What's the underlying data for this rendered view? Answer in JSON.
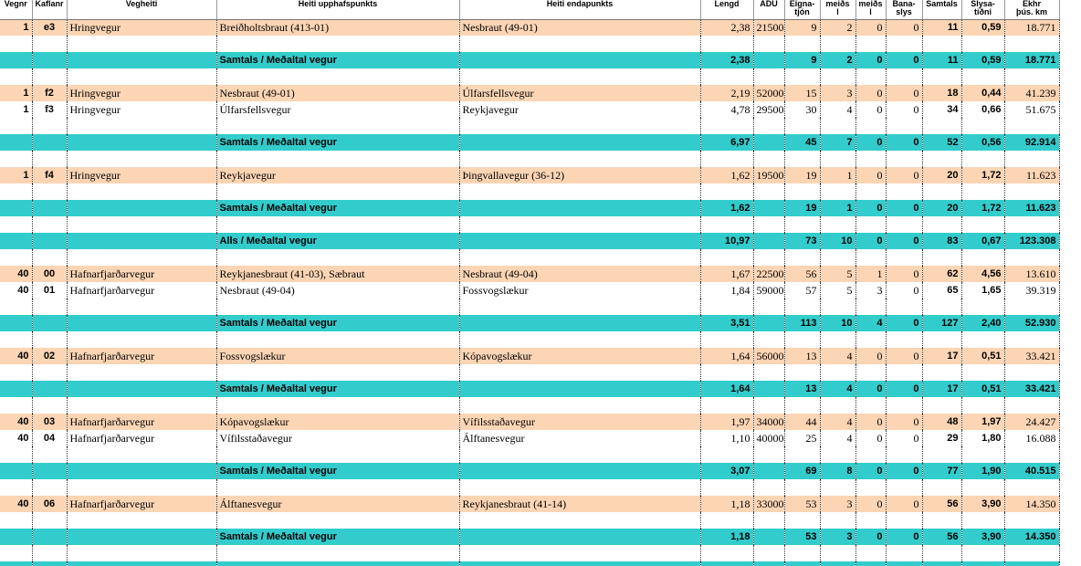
{
  "header": [
    "Vegnr",
    "Kaflanr",
    "Vegheiti",
    "Heiti upphafspunkts",
    "Heiti endapunkts",
    "Lengd",
    "ÁDU",
    "Eigna-\ntjón",
    "meiðs\nl",
    "meiðs\nl",
    "Bana-\nslys",
    "Samtals",
    "Slysa-\ntíðni",
    "Ekhr\nþús. km"
  ],
  "rows": [
    {
      "color": "#fcd5b4",
      "cells": [
        "1",
        "e3",
        "Hringvegur",
        "Breiðholtsbraut (413-01)",
        "Nesbraut (49-01)",
        "2,38",
        "21500",
        "9",
        "2",
        "0",
        "0",
        "11",
        "0,59",
        "18.771"
      ]
    },
    null,
    {
      "color": "#33cccc",
      "cells": [
        null,
        null,
        null,
        "Samtals / Meðaltal vegur",
        null,
        "2,38",
        null,
        "9",
        "2",
        "0",
        "0",
        "11",
        "0,59",
        "18.771"
      ]
    },
    null,
    {
      "color": "#fcd5b4",
      "cells": [
        "1",
        "f2",
        "Hringvegur",
        "Nesbraut (49-01)",
        "Úlfarsfellsvegur",
        "2,19",
        "52000",
        "15",
        "3",
        "0",
        "0",
        "18",
        "0,44",
        "41.239"
      ]
    },
    {
      "color": "#ffffff",
      "cells": [
        "1",
        "f3",
        "Hringvegur",
        "Úlfarsfellsvegur",
        "Reykjavegur",
        "4,78",
        "29500",
        "30",
        "4",
        "0",
        "0",
        "34",
        "0,66",
        "51.675"
      ]
    },
    null,
    {
      "color": "#33cccc",
      "cells": [
        null,
        null,
        null,
        "Samtals / Meðaltal vegur",
        null,
        "6,97",
        null,
        "45",
        "7",
        "0",
        "0",
        "52",
        "0,56",
        "92.914"
      ]
    },
    null,
    {
      "color": "#fcd5b4",
      "cells": [
        "1",
        "f4",
        "Hringvegur",
        "Reykjavegur",
        "Þingvallavegur (36-12)",
        "1,62",
        "19500",
        "19",
        "1",
        "0",
        "0",
        "20",
        "1,72",
        "11.623"
      ]
    },
    null,
    {
      "color": "#33cccc",
      "cells": [
        null,
        null,
        null,
        "Samtals / Meðaltal vegur",
        null,
        "1,62",
        null,
        "19",
        "1",
        "0",
        "0",
        "20",
        "1,72",
        "11.623"
      ]
    },
    null,
    {
      "color": "#33cccc",
      "cells": [
        null,
        null,
        null,
        "Alls / Meðaltal vegur",
        null,
        "10,97",
        null,
        "73",
        "10",
        "0",
        "0",
        "83",
        "0,67",
        "123.308"
      ]
    },
    null,
    {
      "color": "#fcd5b4",
      "cells": [
        "40",
        "00",
        "Hafnarfjarðarvegur",
        "Reykjanesbraut (41-03), Sæbraut",
        "Nesbraut (49-04)",
        "1,67",
        "22500",
        "56",
        "5",
        "1",
        "0",
        "62",
        "4,56",
        "13.610"
      ]
    },
    {
      "color": "#ffffff",
      "cells": [
        "40",
        "01",
        "Hafnarfjarðarvegur",
        "Nesbraut (49-04)",
        "Fossvogslækur",
        "1,84",
        "59000",
        "57",
        "5",
        "3",
        "0",
        "65",
        "1,65",
        "39.319"
      ]
    },
    null,
    {
      "color": "#33cccc",
      "cells": [
        null,
        null,
        null,
        "Samtals / Meðaltal vegur",
        null,
        "3,51",
        null,
        "113",
        "10",
        "4",
        "0",
        "127",
        "2,40",
        "52.930"
      ]
    },
    null,
    {
      "color": "#fcd5b4",
      "cells": [
        "40",
        "02",
        "Hafnarfjarðarvegur",
        "Fossvogslækur",
        "Kópavogslækur",
        "1,64",
        "56000",
        "13",
        "4",
        "0",
        "0",
        "17",
        "0,51",
        "33.421"
      ]
    },
    null,
    {
      "color": "#33cccc",
      "cells": [
        null,
        null,
        null,
        "Samtals / Meðaltal vegur",
        null,
        "1,64",
        null,
        "13",
        "4",
        "0",
        "0",
        "17",
        "0,51",
        "33.421"
      ]
    },
    null,
    {
      "color": "#fcd5b4",
      "cells": [
        "40",
        "03",
        "Hafnarfjarðarvegur",
        "Kópavogslækur",
        "Vífilsstaðavegur",
        "1,97",
        "34000",
        "44",
        "4",
        "0",
        "0",
        "48",
        "1,97",
        "24.427"
      ]
    },
    {
      "color": "#ffffff",
      "cells": [
        "40",
        "04",
        "Hafnarfjarðarvegur",
        "Vífilsstaðavegur",
        "Álftanesvegur",
        "1,10",
        "40000",
        "25",
        "4",
        "0",
        "0",
        "29",
        "1,80",
        "16.088"
      ]
    },
    null,
    {
      "color": "#33cccc",
      "cells": [
        null,
        null,
        null,
        "Samtals / Meðaltal vegur",
        null,
        "3,07",
        null,
        "69",
        "8",
        "0",
        "0",
        "77",
        "1,90",
        "40.515"
      ]
    },
    null,
    {
      "color": "#fcd5b4",
      "cells": [
        "40",
        "06",
        "Hafnarfjarðarvegur",
        "Álftanesvegur",
        "Reykjanesbraut (41-14)",
        "1,18",
        "33000",
        "53",
        "3",
        "0",
        "0",
        "56",
        "3,90",
        "14.350"
      ]
    },
    null,
    {
      "color": "#33cccc",
      "cells": [
        null,
        null,
        null,
        "Samtals / Meðaltal vegur",
        null,
        "1,18",
        null,
        "53",
        "3",
        "0",
        "0",
        "56",
        "3,90",
        "14.350"
      ]
    },
    null,
    {
      "color": "#33cccc"
    }
  ]
}
